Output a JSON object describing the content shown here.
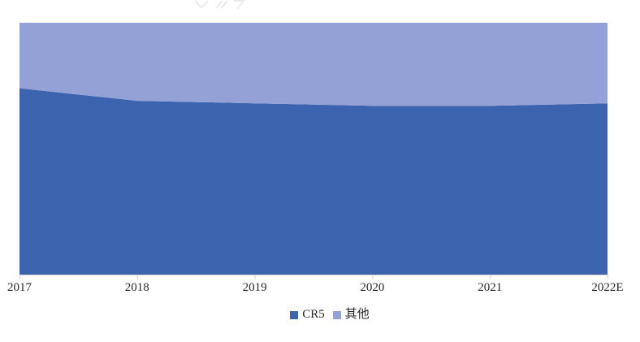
{
  "chart_data": {
    "type": "area",
    "variant": "stacked-100-percent",
    "x": [
      "2017",
      "2018",
      "2019",
      "2020",
      "2021",
      "2022E"
    ],
    "series": [
      {
        "name": "CR5",
        "color": "#3B63AE",
        "values": [
          74,
          69,
          68,
          67,
          67,
          68
        ]
      },
      {
        "name": "其他",
        "color": "#93A1D6",
        "values": [
          26,
          31,
          32,
          33,
          33,
          32
        ]
      }
    ],
    "ylim": [
      0,
      100
    ],
    "grid": false,
    "y_axis_visible": false,
    "legend_position": "bottom"
  },
  "axis": {
    "line_color": "#D0CECE",
    "label_color": "#262626"
  }
}
